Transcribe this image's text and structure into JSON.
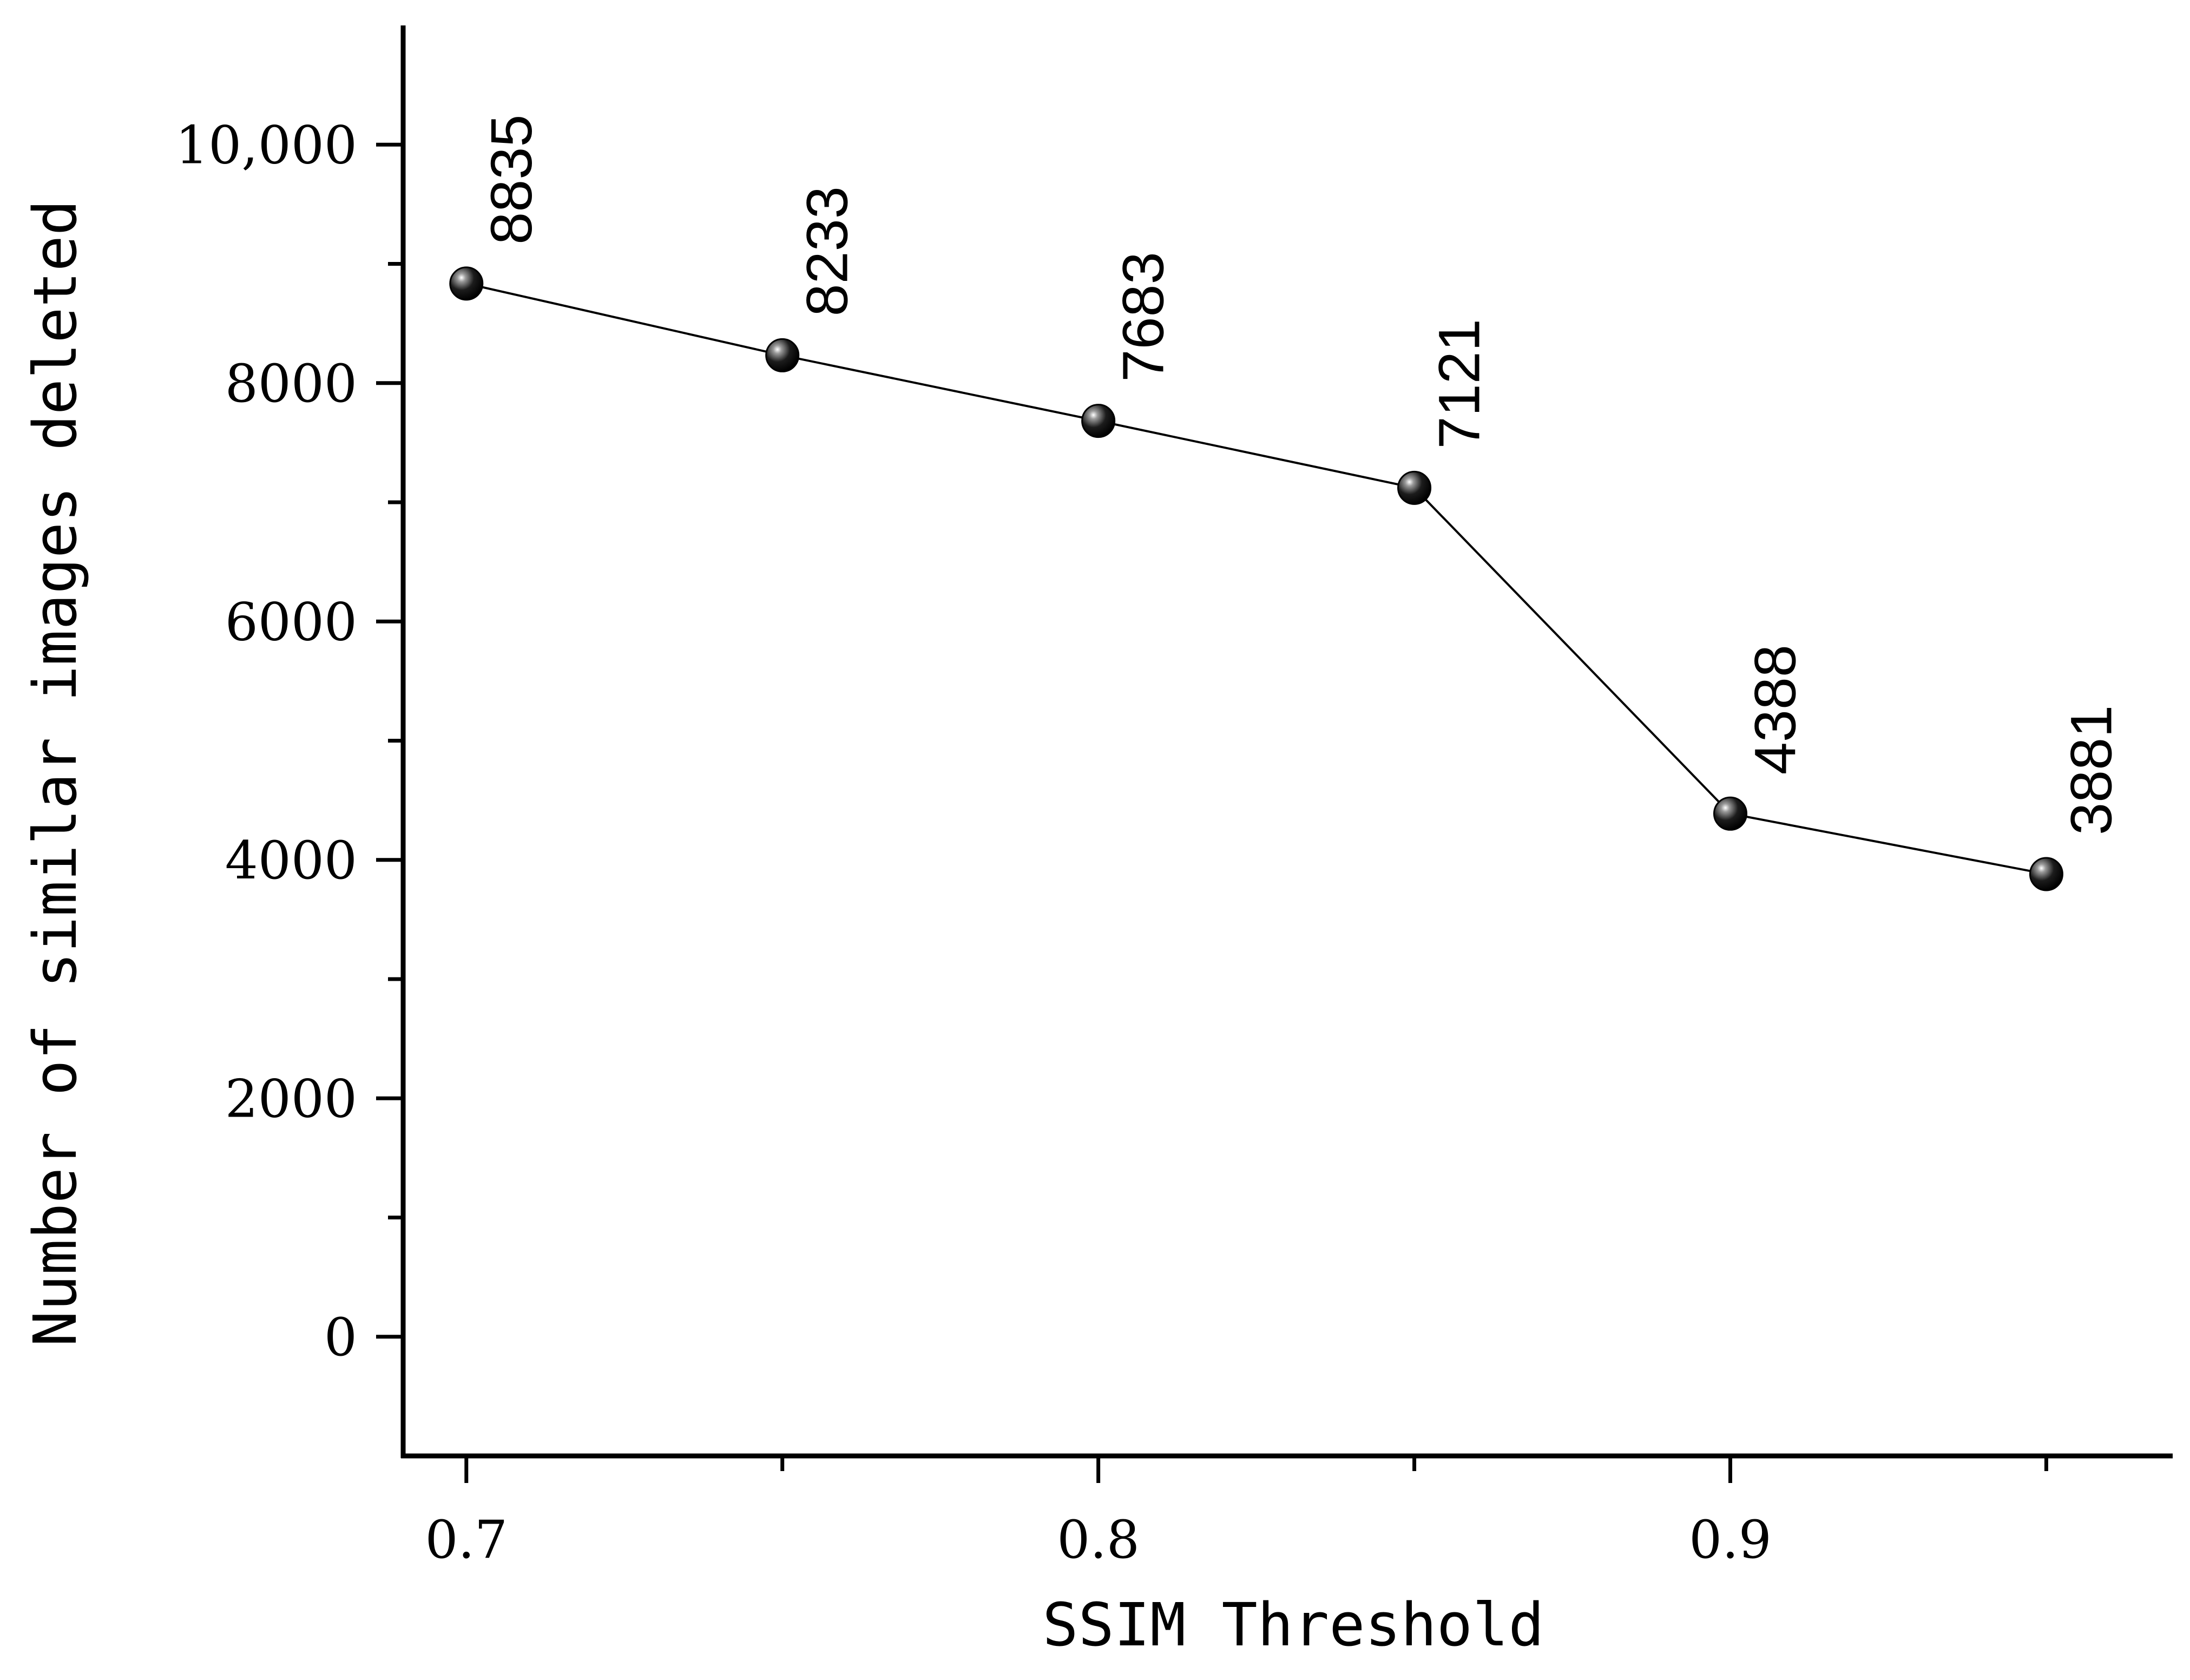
{
  "chart_data": {
    "type": "line",
    "x": [
      0.7,
      0.75,
      0.8,
      0.85,
      0.9,
      0.95
    ],
    "values": [
      8835,
      8233,
      7683,
      7121,
      4388,
      3881
    ],
    "data_labels": [
      "8835",
      "8233",
      "7683",
      "7121",
      "4388",
      "3881"
    ],
    "xlabel": "SSIM Threshold",
    "ylabel": "Number of similar images deleted",
    "xlim": [
      0.69,
      0.97
    ],
    "ylim": [
      -1000,
      11000
    ],
    "xticks": [
      0.7,
      0.8,
      0.9
    ],
    "xtick_labels": [
      "0.7",
      "0.8",
      "0.9"
    ],
    "xticks_minor": [
      0.75,
      0.85,
      0.95
    ],
    "yticks": [
      0,
      2000,
      4000,
      6000,
      8000,
      10000
    ],
    "ytick_labels": [
      "0",
      "2000",
      "4000",
      "6000",
      "8000",
      "10,000"
    ],
    "yticks_minor": [
      1000,
      3000,
      5000,
      7000,
      9000
    ],
    "grid": false,
    "legend": "none",
    "marker": "sphere",
    "colors": {
      "line": "#000000",
      "marker": "#111111",
      "background": "#ffffff"
    }
  }
}
